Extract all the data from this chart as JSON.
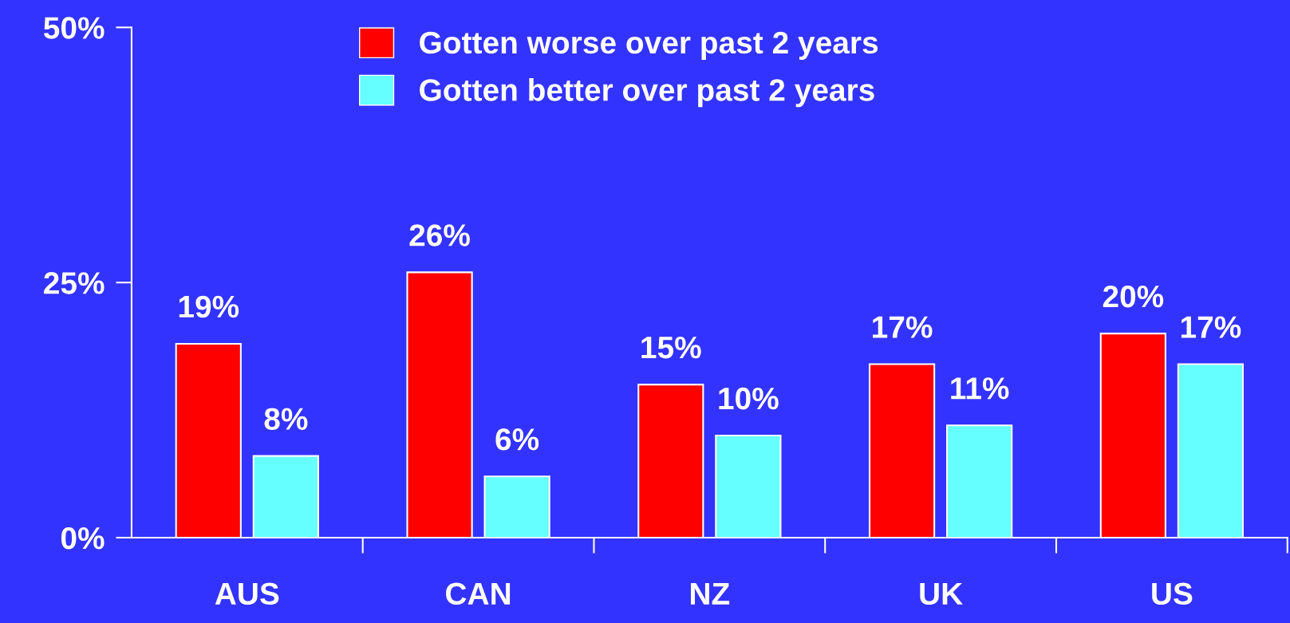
{
  "chart_data": {
    "type": "bar",
    "categories": [
      "AUS",
      "CAN",
      "NZ",
      "UK",
      "US"
    ],
    "series": [
      {
        "name": "Gotten worse over past 2 years",
        "color": "#ff0000",
        "values": [
          19,
          26,
          15,
          17,
          20
        ]
      },
      {
        "name": "Gotten better over past 2 years",
        "color": "#66ffff",
        "values": [
          8,
          6,
          10,
          11,
          17
        ]
      }
    ],
    "ylim": [
      0,
      50
    ],
    "yticks": [
      {
        "value": 0,
        "label": "0%"
      },
      {
        "value": 25,
        "label": "25%"
      },
      {
        "value": 50,
        "label": "50%"
      }
    ],
    "value_labels": [
      [
        "19%",
        "26%",
        "15%",
        "17%",
        "20%"
      ],
      [
        "8%",
        "6%",
        "10%",
        "11%",
        "17%"
      ]
    ],
    "grid": false,
    "legend": "top"
  }
}
